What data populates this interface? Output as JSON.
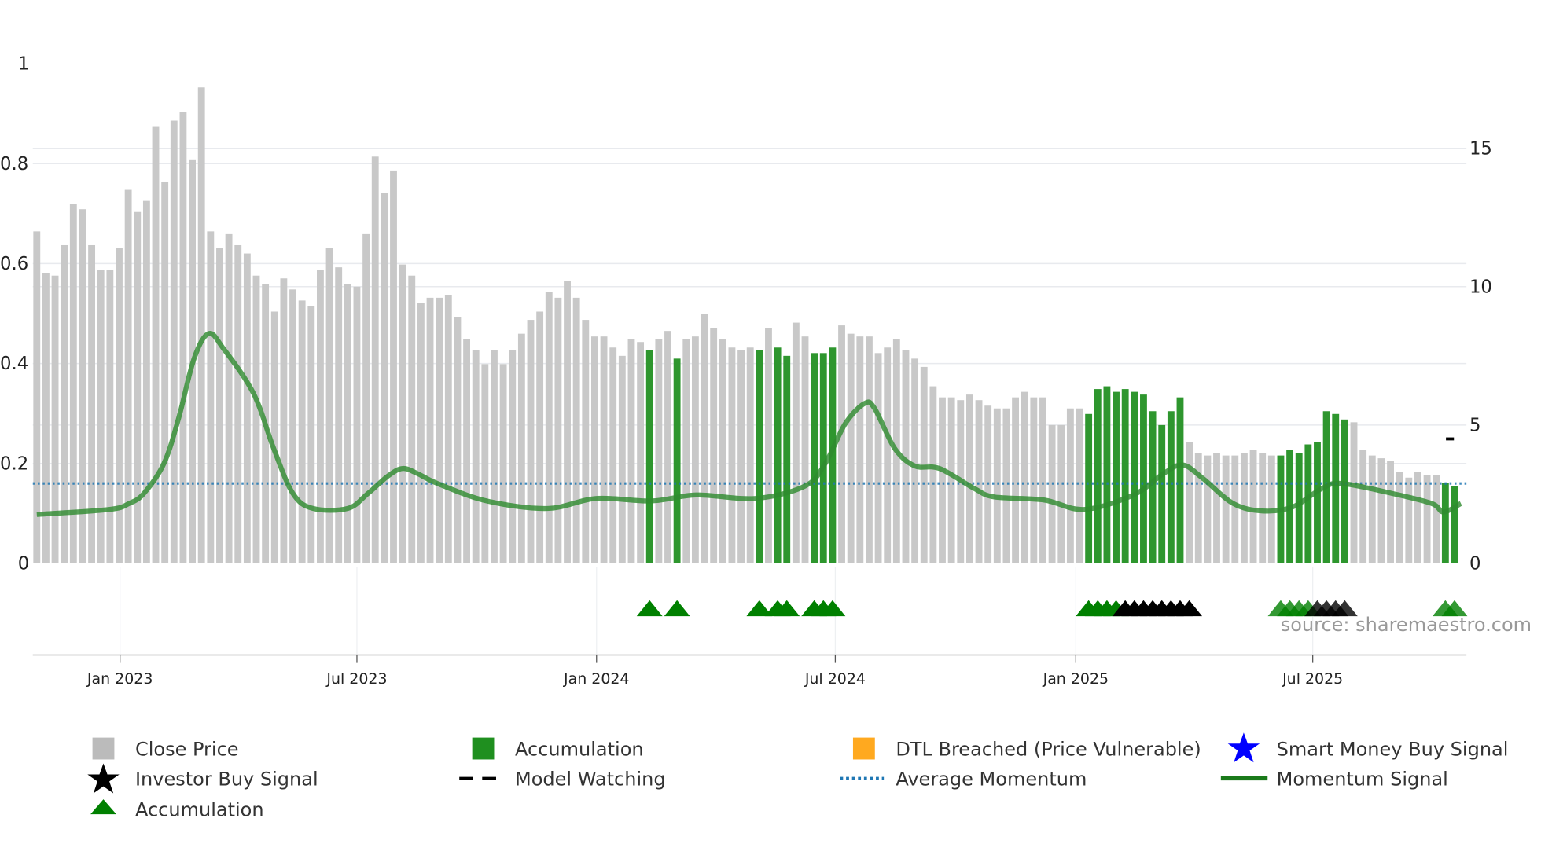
{
  "chart_data": {
    "type": "bar",
    "title": "",
    "x_unit": "week index",
    "left_axis": {
      "ticks": [
        "0",
        "0.2",
        "0.4",
        "0.6",
        "0.8",
        "1"
      ],
      "range": [
        0,
        1
      ]
    },
    "right_axis": {
      "ticks": [
        "0",
        "5",
        "10",
        "15"
      ],
      "range": [
        0,
        18
      ]
    },
    "x_ticks": [
      {
        "label": "Jan 2023",
        "week": 10.1
      },
      {
        "label": "Jul 2023",
        "week": 36
      },
      {
        "label": "Jan 2024",
        "week": 62.2
      },
      {
        "label": "Jul 2024",
        "week": 88.3
      },
      {
        "label": "Jan 2025",
        "week": 114.6
      },
      {
        "label": "Jul 2025",
        "week": 140.5
      }
    ],
    "close_price": [
      12.0,
      10.5,
      10.4,
      11.5,
      13.0,
      12.8,
      11.5,
      10.6,
      10.6,
      11.4,
      13.5,
      12.7,
      13.1,
      15.8,
      13.8,
      16.0,
      16.3,
      14.6,
      17.2,
      12.0,
      11.4,
      11.9,
      11.5,
      11.2,
      10.4,
      10.1,
      9.1,
      10.3,
      9.9,
      9.5,
      9.3,
      10.6,
      11.4,
      10.7,
      10.1,
      10.0,
      11.9,
      14.7,
      13.4,
      14.2,
      10.8,
      10.4,
      9.4,
      9.6,
      9.6,
      9.7,
      8.9,
      8.1,
      7.7,
      7.2,
      7.7,
      7.2,
      7.7,
      8.3,
      8.8,
      9.1,
      9.8,
      9.6,
      10.2,
      9.6,
      8.8,
      8.2,
      8.2,
      7.8,
      7.5,
      8.1,
      8.0,
      7.7,
      8.1,
      8.4,
      7.4,
      8.1,
      8.2,
      9.0,
      8.5,
      8.1,
      7.8,
      7.7,
      7.8,
      7.7,
      8.5,
      7.8,
      7.5,
      8.7,
      8.2,
      7.6,
      7.6,
      7.8,
      8.6,
      8.3,
      8.2,
      8.2,
      7.6,
      7.8,
      8.1,
      7.7,
      7.4,
      7.1,
      6.4,
      6.0,
      6.0,
      5.9,
      6.1,
      5.9,
      5.7,
      5.6,
      5.6,
      6.0,
      6.2,
      6.0,
      6.0,
      5.0,
      5.0,
      5.6,
      5.6,
      5.4,
      6.3,
      6.4,
      6.2,
      6.3,
      6.2,
      6.1,
      5.5,
      5.0,
      5.5,
      6.0,
      4.4,
      4.0,
      3.9,
      4.0,
      3.9,
      3.9,
      4.0,
      4.1,
      4.0,
      3.9,
      3.9,
      4.1,
      4.0,
      4.3,
      4.4,
      5.5,
      5.4,
      5.2,
      5.1,
      4.1,
      3.9,
      3.8,
      3.7,
      3.3,
      3.1,
      3.3,
      3.2,
      3.2,
      2.9,
      2.8
    ],
    "accumulation_weeks": [
      68,
      71,
      80,
      82,
      83,
      86,
      87,
      88,
      116,
      117,
      118,
      119,
      120,
      121,
      122,
      123,
      124,
      125,
      126,
      137,
      138,
      139,
      140,
      141,
      142,
      143,
      144,
      155,
      156
    ],
    "accumulation_signal_weeks": [
      68,
      71,
      80,
      82,
      83,
      86,
      87,
      88,
      116,
      117,
      118,
      119,
      137,
      138,
      139,
      140,
      155,
      156
    ],
    "investor_buy_weeks": [
      120,
      121,
      122,
      123,
      124,
      125,
      126,
      127,
      141,
      142,
      143,
      144
    ],
    "model_watching": {
      "week": 155.5,
      "value": 4.5
    },
    "average_momentum": 0.16,
    "momentum_signal": [
      [
        1,
        0.098
      ],
      [
        8.9,
        0.108
      ],
      [
        11.1,
        0.12
      ],
      [
        12.7,
        0.14
      ],
      [
        14.9,
        0.2
      ],
      [
        16.5,
        0.29
      ],
      [
        18.2,
        0.41
      ],
      [
        19.8,
        0.46
      ],
      [
        21.4,
        0.43
      ],
      [
        24.7,
        0.34
      ],
      [
        26.9,
        0.23
      ],
      [
        29,
        0.14
      ],
      [
        31.2,
        0.11
      ],
      [
        35,
        0.11
      ],
      [
        37.2,
        0.14
      ],
      [
        39.4,
        0.175
      ],
      [
        41,
        0.19
      ],
      [
        42.6,
        0.18
      ],
      [
        44.8,
        0.16
      ],
      [
        50.2,
        0.125
      ],
      [
        56.8,
        0.11
      ],
      [
        62.2,
        0.13
      ],
      [
        68.2,
        0.125
      ],
      [
        73.1,
        0.137
      ],
      [
        79.6,
        0.13
      ],
      [
        85,
        0.155
      ],
      [
        87.2,
        0.2
      ],
      [
        89.4,
        0.28
      ],
      [
        91.5,
        0.32
      ],
      [
        92.6,
        0.31
      ],
      [
        94.8,
        0.23
      ],
      [
        97,
        0.195
      ],
      [
        99.7,
        0.19
      ],
      [
        103.5,
        0.15
      ],
      [
        105.7,
        0.133
      ],
      [
        111.1,
        0.127
      ],
      [
        115.5,
        0.108
      ],
      [
        120.9,
        0.137
      ],
      [
        124.2,
        0.18
      ],
      [
        126.3,
        0.197
      ],
      [
        128.5,
        0.17
      ],
      [
        131.8,
        0.12
      ],
      [
        135,
        0.105
      ],
      [
        138.3,
        0.113
      ],
      [
        141.5,
        0.15
      ],
      [
        143.7,
        0.16
      ],
      [
        149.2,
        0.14
      ],
      [
        153.5,
        0.12
      ],
      [
        154.8,
        0.103
      ],
      [
        156.7,
        0.12
      ]
    ],
    "legend": [
      {
        "label": "Close Price",
        "color": "#bbbbbb",
        "symbol": "square"
      },
      {
        "label": "Accumulation",
        "color": "#1f8f1f",
        "symbol": "square"
      },
      {
        "label": "DTL Breached (Price Vulnerable)",
        "color": "#ffa91f",
        "symbol": "square"
      },
      {
        "label": "Smart Money Buy Signal",
        "color": "#0000ff",
        "symbol": "star"
      },
      {
        "label": "Investor Buy Signal",
        "color": "#000000",
        "symbol": "star"
      },
      {
        "label": "Model Watching",
        "color": "#000000",
        "symbol": "dash"
      },
      {
        "label": "Average Momentum",
        "color": "#1f77b4",
        "symbol": "dot"
      },
      {
        "label": "Momentum Signal",
        "color": "#1a7a1a",
        "symbol": "line"
      },
      {
        "label": "Accumulation",
        "color": "#008000",
        "symbol": "triangle"
      }
    ],
    "source": "source: sharemaestro.com"
  }
}
